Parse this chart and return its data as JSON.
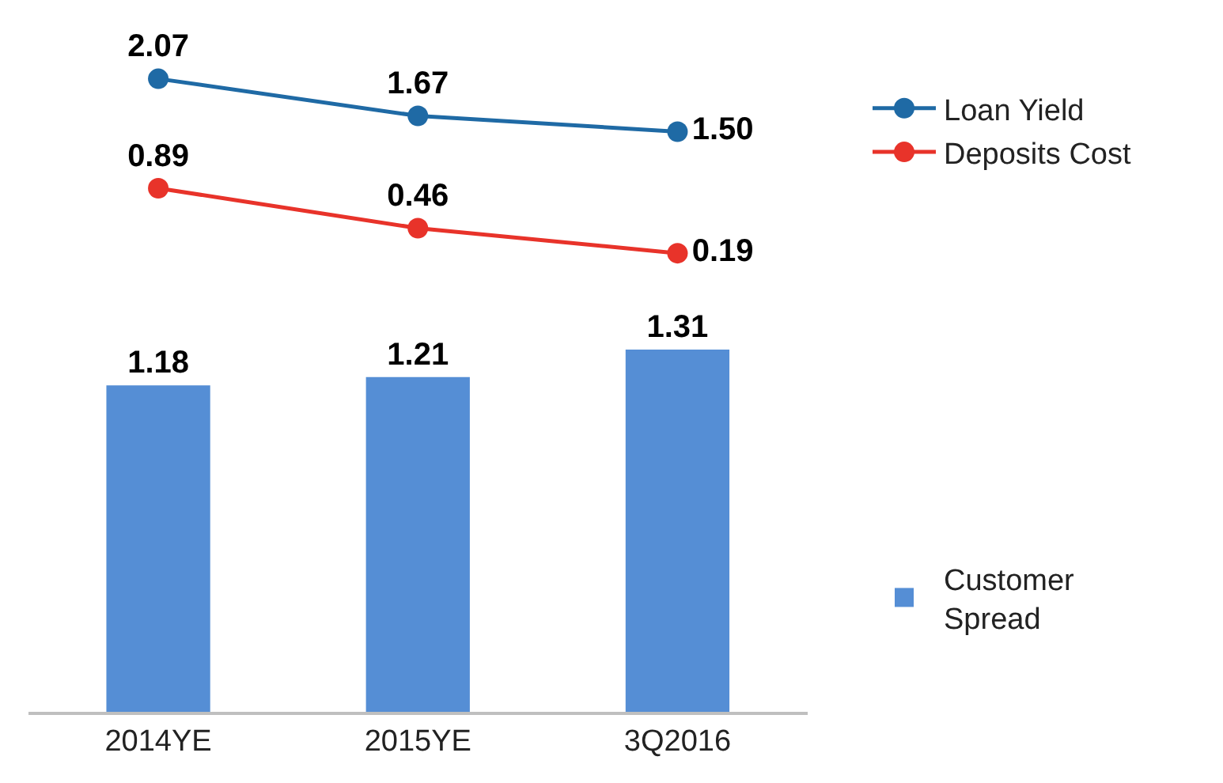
{
  "chart_data": [
    {
      "type": "line",
      "categories": [
        null,
        null,
        null
      ],
      "tick_labels": false,
      "legend": "right",
      "marker": "circle",
      "line_style": "solid",
      "series": [
        {
          "name": "Loan Yield",
          "color": "#1f6aa5",
          "values": [
            2.07,
            1.67,
            1.5
          ],
          "value_labels": [
            "2.07",
            "1.67",
            "1.50"
          ]
        },
        {
          "name": "Deposits Cost",
          "color": "#e8332a",
          "values": [
            0.89,
            0.46,
            0.19
          ],
          "value_labels": [
            "0.89",
            "0.46",
            "0.19"
          ]
        }
      ]
    },
    {
      "type": "bar",
      "categories": [
        "2014YE",
        "2015YE",
        "3Q2016"
      ],
      "tick_labels": "x",
      "legend": "right",
      "data_labels": true,
      "series": [
        {
          "name": "Customer Spread",
          "color": "#558ed5",
          "values": [
            1.18,
            1.21,
            1.31
          ]
        }
      ]
    }
  ]
}
